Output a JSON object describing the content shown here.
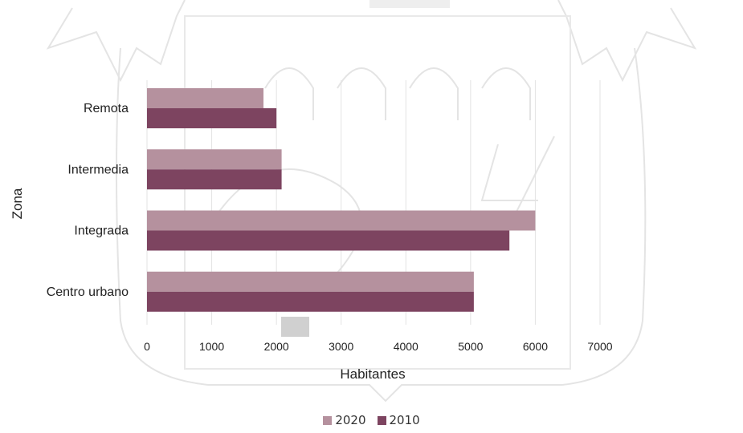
{
  "chart_data": {
    "type": "bar",
    "orientation": "horizontal",
    "title": "",
    "xlabel": "Habitantes",
    "ylabel": "Zona",
    "categories": [
      "Remota",
      "Intermedia",
      "Integrada",
      "Centro urbano"
    ],
    "series": [
      {
        "name": "2020",
        "color": "#b5919e",
        "values": [
          1800,
          2080,
          6000,
          5050
        ]
      },
      {
        "name": "2010",
        "color": "#7d4460",
        "values": [
          2000,
          2080,
          5600,
          5050
        ]
      }
    ],
    "xlim": [
      0,
      7000
    ],
    "xticks": [
      0,
      1000,
      2000,
      3000,
      4000,
      5000,
      6000,
      7000
    ],
    "xtick_labels": [
      "0",
      "1000",
      "2000",
      "3000",
      "4000",
      "5000",
      "6000",
      "7000"
    ],
    "grid": true,
    "legend": "bottom-center"
  }
}
